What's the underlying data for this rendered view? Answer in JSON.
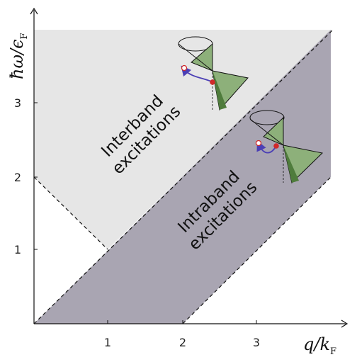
{
  "axes": {
    "x_label_main": "q/k",
    "x_label_sub": "F",
    "y_label_main": "ħω/ϵ",
    "y_label_sub": "F",
    "x_ticks": [
      "1",
      "2",
      "3"
    ],
    "y_ticks": [
      "1",
      "2",
      "3"
    ]
  },
  "regions": {
    "interband_line1": "Interband",
    "interband_line2": "excitations",
    "intraband_line1": "Intraband",
    "intraband_line2": "excitations"
  },
  "colors": {
    "interband_fill": "#e6e6e6",
    "intraband_fill": "#a9a5b2",
    "cone_fill": "#8db07a",
    "cone_shadow": "#4f7c3c",
    "electron": "#d12a2a",
    "arrow": "#4b3fb5"
  }
}
